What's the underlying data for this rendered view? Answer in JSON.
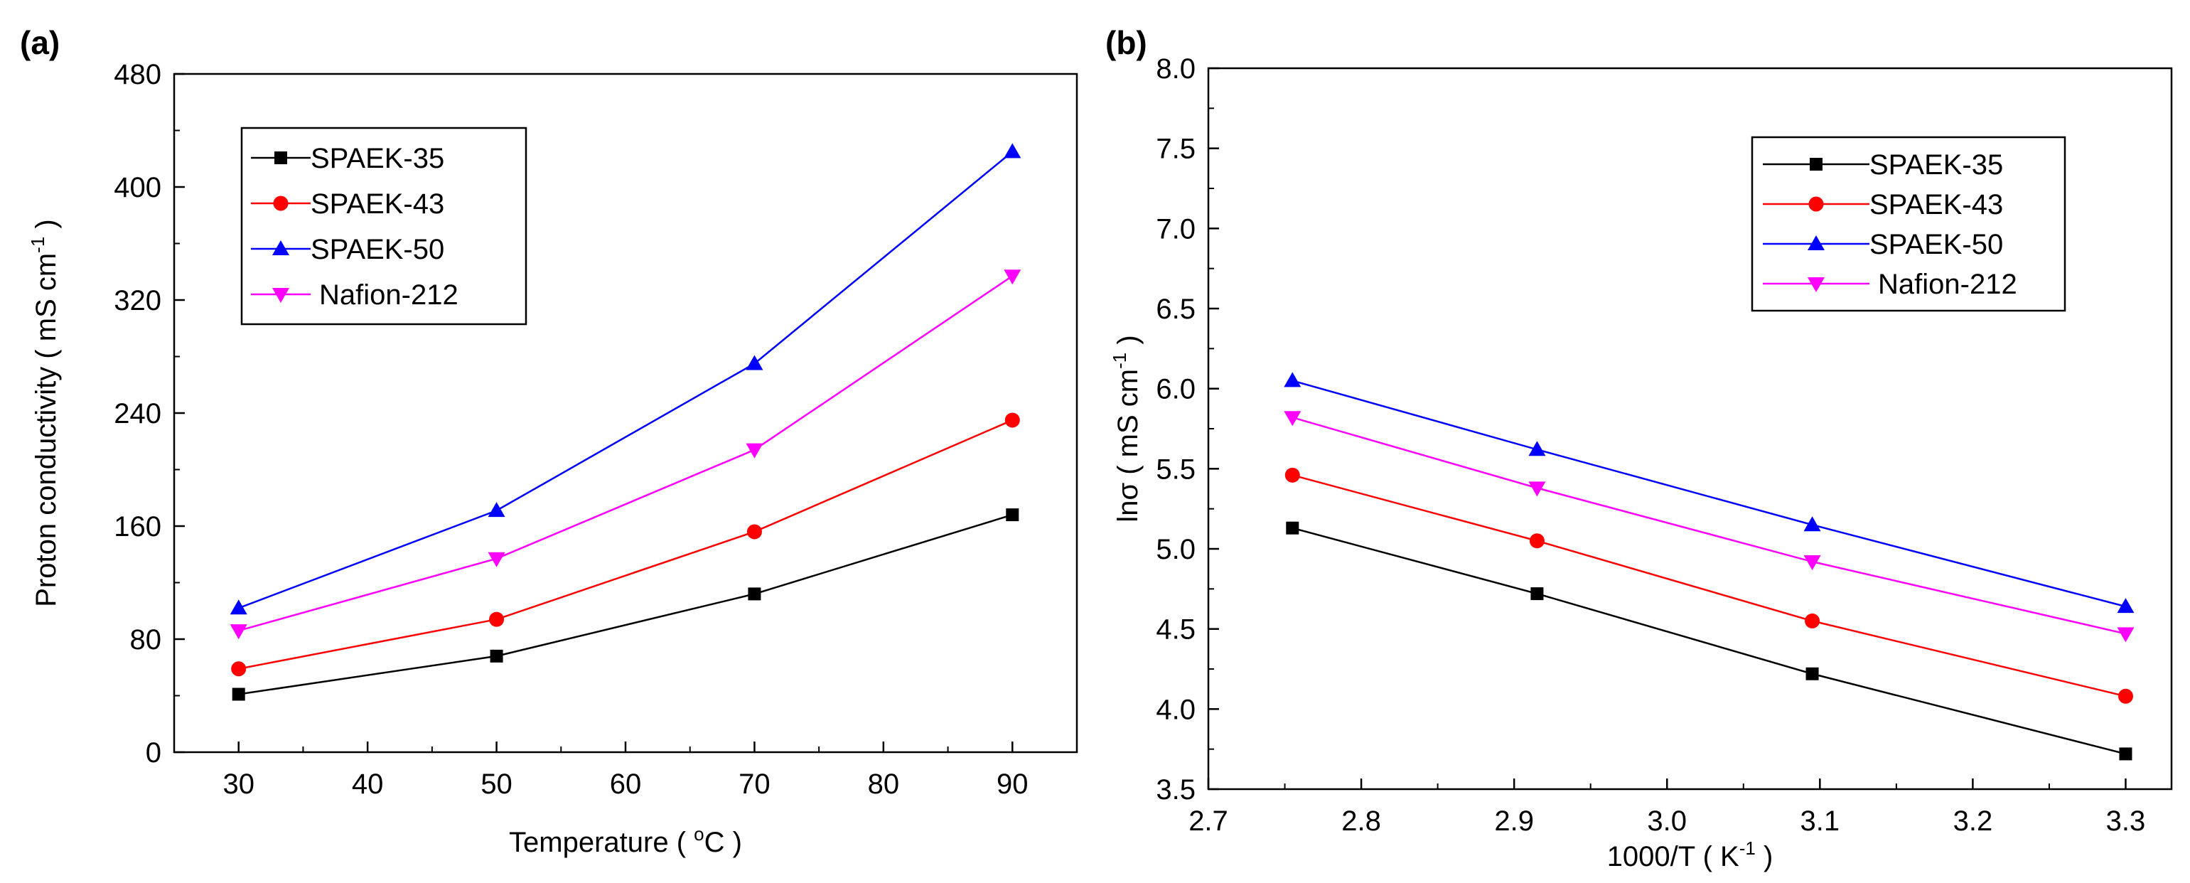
{
  "chart_data": [
    {
      "panel": "(a)",
      "type": "line",
      "xlabel": "Temperature ( °C )",
      "xlabel_parts": {
        "pre": "Temperature ( ",
        "sup": "o",
        "post": "C )"
      },
      "ylabel": "Proton conductivity ( mS cm-1 )",
      "ylabel_parts": {
        "pre": "Proton conductivity ( mS cm",
        "sup": "-1",
        "post": " )"
      },
      "xlim": [
        25,
        95
      ],
      "ylim": [
        0,
        480
      ],
      "xticks": [
        30,
        40,
        50,
        60,
        70,
        80,
        90
      ],
      "yticks": [
        0,
        80,
        160,
        240,
        320,
        400,
        480
      ],
      "legend_position": "top-left",
      "x": [
        30,
        50,
        70,
        90
      ],
      "series": [
        {
          "name": "SPAEK-35",
          "color": "#000000",
          "marker": "square",
          "values": [
            41,
            68,
            112,
            168
          ]
        },
        {
          "name": "SPAEK-43",
          "color": "#ff0000",
          "marker": "circle",
          "values": [
            59,
            94,
            156,
            235
          ]
        },
        {
          "name": "SPAEK-50",
          "color": "#0000ff",
          "marker": "triangle-up",
          "values": [
            102,
            171,
            275,
            425
          ]
        },
        {
          "name": "Nafion-212",
          "color": "#ff00ff",
          "marker": "triangle-down",
          "values": [
            86,
            137,
            214,
            337
          ]
        }
      ]
    },
    {
      "panel": "(b)",
      "type": "line",
      "xlabel": "1000/T ( K-1 )",
      "xlabel_parts": {
        "pre": "1000/T ( K",
        "sup": "-1",
        "post": " )"
      },
      "ylabel": "lnσ ( mS cm-1 )",
      "ylabel_parts": {
        "pre": "lnσ ( mS cm",
        "sup": "-1",
        "post": " )"
      },
      "xlim": [
        2.7,
        3.33
      ],
      "ylim": [
        3.5,
        8.0
      ],
      "xticks": [
        "2.7",
        "2.8",
        "2.9",
        "3.0",
        "3.1",
        "3.2",
        "3.3"
      ],
      "yticks": [
        "3.5",
        "4.0",
        "4.5",
        "5.0",
        "5.5",
        "6.0",
        "6.5",
        "7.0",
        "7.5",
        "8.0"
      ],
      "legend_position": "top-right",
      "x": [
        2.755,
        2.915,
        3.095,
        3.3
      ],
      "series": [
        {
          "name": "SPAEK-35",
          "color": "#000000",
          "marker": "square",
          "values": [
            5.13,
            4.72,
            4.22,
            3.72
          ]
        },
        {
          "name": "SPAEK-43",
          "color": "#ff0000",
          "marker": "circle",
          "values": [
            5.46,
            5.05,
            4.55,
            4.08
          ]
        },
        {
          "name": "SPAEK-50",
          "color": "#0000ff",
          "marker": "triangle-up",
          "values": [
            6.05,
            5.62,
            5.15,
            4.64
          ]
        },
        {
          "name": "Nafion-212",
          "color": "#ff00ff",
          "marker": "triangle-down",
          "values": [
            5.82,
            5.38,
            4.92,
            4.47
          ]
        }
      ]
    }
  ]
}
